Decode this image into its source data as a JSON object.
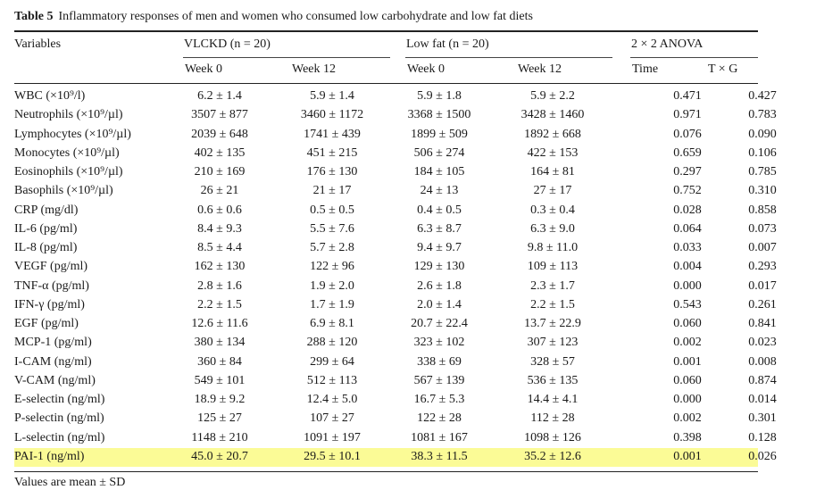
{
  "caption": {
    "label": "Table 5",
    "text": "Inflammatory responses of men and women who consumed low carbohydrate and low fat diets"
  },
  "header": {
    "variables": "Variables",
    "group_vlckd": "VLCKD (n = 20)",
    "group_lowfat": "Low fat (n = 20)",
    "group_anova": "2 × 2 ANOVA",
    "sub": [
      "Week 0",
      "Week 12",
      "Week 0",
      "Week 12",
      "Time",
      "T × G"
    ]
  },
  "rows": [
    {
      "name": "WBC (×10⁹/l)",
      "v": [
        "6.2 ± 1.4",
        "5.9 ± 1.4",
        "5.9 ± 1.8",
        "5.9 ± 2.2",
        "0.471",
        "0.427"
      ]
    },
    {
      "name": "Neutrophils (×10⁹/µl)",
      "v": [
        "3507 ± 877",
        "3460 ± 1172",
        "3368 ± 1500",
        "3428 ± 1460",
        "0.971",
        "0.783"
      ]
    },
    {
      "name": "Lymphocytes (×10⁹/µl)",
      "v": [
        "2039 ± 648",
        "1741 ± 439",
        "1899 ± 509",
        "1892 ± 668",
        "0.076",
        "0.090"
      ]
    },
    {
      "name": "Monocytes (×10⁹/µl)",
      "v": [
        "402 ± 135",
        "451 ± 215",
        "506 ± 274",
        "422 ± 153",
        "0.659",
        "0.106"
      ]
    },
    {
      "name": "Eosinophils (×10⁹/µl)",
      "v": [
        "210 ± 169",
        "176 ± 130",
        "184 ± 105",
        "164 ± 81",
        "0.297",
        "0.785"
      ]
    },
    {
      "name": "Basophils (×10⁹/µl)",
      "v": [
        "26 ± 21",
        "21 ± 17",
        "24 ± 13",
        "27 ± 17",
        "0.752",
        "0.310"
      ]
    },
    {
      "name": "CRP (mg/dl)",
      "v": [
        "0.6 ± 0.6",
        "0.5 ± 0.5",
        "0.4 ± 0.5",
        "0.3 ± 0.4",
        "0.028",
        "0.858"
      ]
    },
    {
      "name": "IL-6 (pg/ml)",
      "v": [
        "8.4 ± 9.3",
        "5.5 ± 7.6",
        "6.3 ± 8.7",
        "6.3 ± 9.0",
        "0.064",
        "0.073"
      ]
    },
    {
      "name": "IL-8 (pg/ml)",
      "v": [
        "8.5 ± 4.4",
        "5.7 ± 2.8",
        "9.4 ± 9.7",
        "9.8 ± 11.0",
        "0.033",
        "0.007"
      ]
    },
    {
      "name": "VEGF (pg/ml)",
      "v": [
        "162 ± 130",
        "122 ± 96",
        "129 ± 130",
        "109 ± 113",
        "0.004",
        "0.293"
      ]
    },
    {
      "name": "TNF-α (pg/ml)",
      "v": [
        "2.8 ± 1.6",
        "1.9 ± 2.0",
        "2.6 ± 1.8",
        "2.3 ± 1.7",
        "0.000",
        "0.017"
      ]
    },
    {
      "name": "IFN-γ (pg/ml)",
      "v": [
        "2.2 ± 1.5",
        "1.7 ± 1.9",
        "2.0 ± 1.4",
        "2.2 ± 1.5",
        "0.543",
        "0.261"
      ]
    },
    {
      "name": "EGF (pg/ml)",
      "v": [
        "12.6 ± 11.6",
        "6.9 ± 8.1",
        "20.7 ± 22.4",
        "13.7 ± 22.9",
        "0.060",
        "0.841"
      ]
    },
    {
      "name": "MCP-1 (pg/ml)",
      "v": [
        "380 ± 134",
        "288 ± 120",
        "323 ± 102",
        "307 ± 123",
        "0.002",
        "0.023"
      ]
    },
    {
      "name": "I-CAM (ng/ml)",
      "v": [
        "360 ± 84",
        "299 ± 64",
        "338 ± 69",
        "328 ± 57",
        "0.001",
        "0.008"
      ]
    },
    {
      "name": "V-CAM (ng/ml)",
      "v": [
        "549 ± 101",
        "512 ± 113",
        "567 ± 139",
        "536 ± 135",
        "0.060",
        "0.874"
      ]
    },
    {
      "name": "E-selectin (ng/ml)",
      "v": [
        "18.9 ± 9.2",
        "12.4 ± 5.0",
        "16.7 ± 5.3",
        "14.4 ± 4.1",
        "0.000",
        "0.014"
      ]
    },
    {
      "name": "P-selectin (ng/ml)",
      "v": [
        "125 ± 27",
        "107 ± 27",
        "122 ± 28",
        "112 ± 28",
        "0.002",
        "0.301"
      ]
    },
    {
      "name": "L-selectin (ng/ml)",
      "v": [
        "1148 ± 210",
        "1091 ± 197",
        "1081 ± 167",
        "1098 ± 126",
        "0.398",
        "0.128"
      ]
    },
    {
      "name": "PAI-1 (ng/ml)",
      "v": [
        "45.0 ± 20.7",
        "29.5 ± 10.1",
        "38.3 ± 11.5",
        "35.2 ± 12.6",
        "0.001",
        "0.026"
      ],
      "highlight": true
    }
  ],
  "footer": "Values are mean ± SD",
  "colors": {
    "highlight": "#fbfb96",
    "text": "#1a1a1a"
  }
}
